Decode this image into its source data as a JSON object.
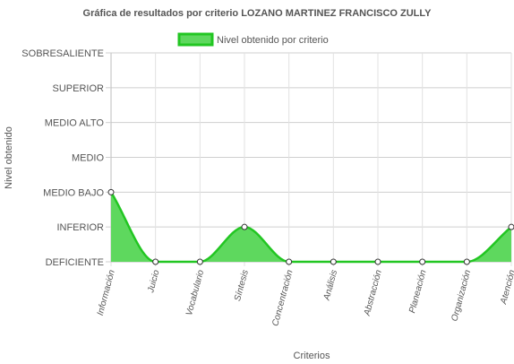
{
  "chart_data": {
    "type": "area",
    "title": "Gráfica de resultados por criterio LOZANO MARTINEZ FRANCISCO ZULLY",
    "xlabel": "Criterios",
    "ylabel": "Nivel obtenido",
    "legend_position": "top",
    "grid": true,
    "categories": [
      "Información",
      "Juicio",
      "Vocabulario",
      "Síntesis",
      "Concentración",
      "Análisis",
      "Abstracción",
      "Planeación",
      "Organización",
      "Atención"
    ],
    "y_levels": [
      "DEFICIENTE",
      "INFERIOR",
      "MEDIO BAJO",
      "MEDIO",
      "MEDIO ALTO",
      "SUPERIOR",
      "SOBRESALIENTE"
    ],
    "ylim": [
      0,
      6
    ],
    "series": [
      {
        "name": "Nivel obtenido por criterio",
        "values": [
          2,
          0,
          0,
          1,
          0,
          0,
          0,
          0,
          0,
          1
        ],
        "line_color": "#22c622",
        "fill_color": "#5ed85e"
      }
    ]
  }
}
